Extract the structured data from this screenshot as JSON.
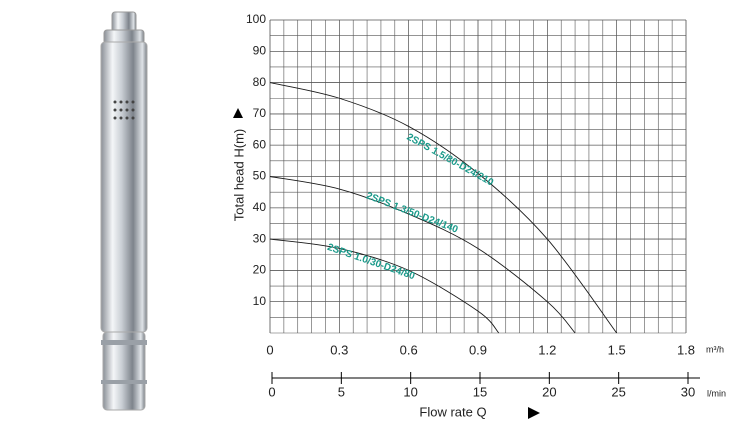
{
  "chart_data": {
    "type": "line",
    "ylabel": "Total head H(m)",
    "xunit": "m³/h",
    "x2unit": "l/min",
    "xlabel": "Flow rate Q",
    "xlim": [
      0,
      1.8
    ],
    "xticks": [
      0,
      0.3,
      0.6,
      0.9,
      1.2,
      1.5,
      1.8
    ],
    "x2lim": [
      0,
      30
    ],
    "x2ticks": [
      0,
      5,
      10,
      15,
      20,
      25,
      30
    ],
    "ylim": [
      0,
      100
    ],
    "yticks": [
      10,
      20,
      30,
      40,
      50,
      60,
      70,
      80,
      90,
      100
    ],
    "grid": true,
    "series": [
      {
        "name": "2SPS 1.5/80-D24/210",
        "color": "#1a1a1a",
        "x": [
          0,
          0.3,
          0.6,
          0.9,
          1.2,
          1.5
        ],
        "values": [
          80,
          75,
          66,
          51,
          30,
          0
        ]
      },
      {
        "name": "2SPS 1.3/50-D24/140",
        "color": "#1a1a1a",
        "x": [
          0,
          0.3,
          0.6,
          0.9,
          1.2,
          1.32
        ],
        "values": [
          50,
          46,
          38,
          27,
          10,
          0
        ]
      },
      {
        "name": "2SPS 1.0/30-D24/80",
        "color": "#1a1a1a",
        "x": [
          0,
          0.3,
          0.6,
          0.9,
          0.99
        ],
        "values": [
          30,
          27,
          20,
          7,
          0
        ]
      }
    ]
  }
}
